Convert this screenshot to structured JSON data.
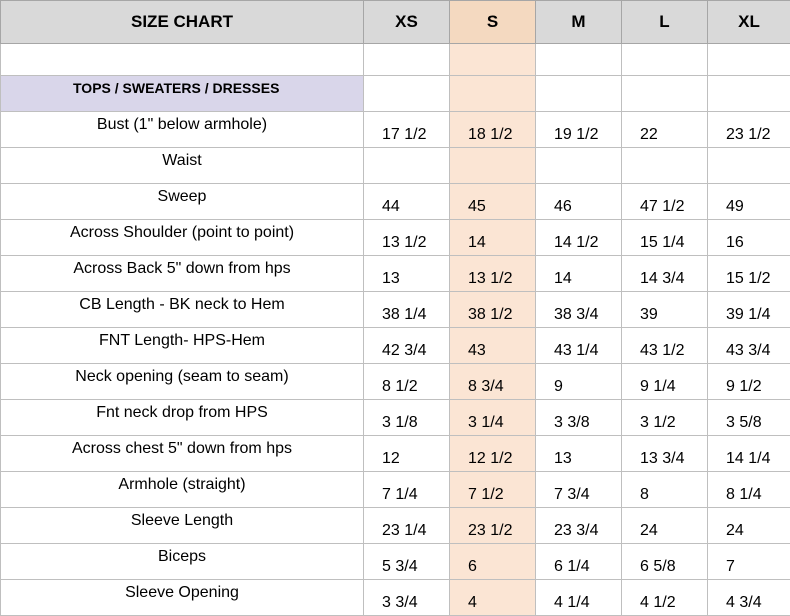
{
  "header": {
    "title": "SIZE CHART",
    "sizes": [
      "XS",
      "S",
      "M",
      "L",
      "XL"
    ]
  },
  "highlight_color": "#fbe5d4",
  "section": {
    "title": "TOPS / SWEATERS / DRESSES"
  },
  "rows": [
    {
      "label": "Bust (1\" below armhole)",
      "values": [
        "17 1/2",
        "18 1/2",
        "19 1/2",
        "22",
        "23 1/2"
      ]
    },
    {
      "label": "Waist",
      "values": [
        "",
        "",
        "",
        "",
        ""
      ]
    },
    {
      "label": "Sweep",
      "values": [
        "44",
        "45",
        "46",
        "47 1/2",
        "49"
      ]
    },
    {
      "label": "Across Shoulder (point to point)",
      "values": [
        "13 1/2",
        "14",
        "14 1/2",
        "15 1/4",
        "16"
      ]
    },
    {
      "label": "Across Back 5\" down from hps",
      "values": [
        "13",
        "13 1/2",
        "14",
        "14 3/4",
        "15 1/2"
      ]
    },
    {
      "label": "CB Length - BK neck to Hem",
      "values": [
        "38 1/4",
        "38 1/2",
        "38 3/4",
        "39",
        "39 1/4"
      ]
    },
    {
      "label": "FNT Length- HPS-Hem",
      "values": [
        "42 3/4",
        "43",
        "43 1/4",
        "43 1/2",
        "43 3/4"
      ]
    },
    {
      "label": "Neck opening (seam to seam)",
      "values": [
        "8 1/2",
        "8 3/4",
        "9",
        "9 1/4",
        "9 1/2"
      ]
    },
    {
      "label": "Fnt neck drop from HPS",
      "values": [
        "3 1/8",
        "3 1/4",
        "3 3/8",
        "3 1/2",
        "3 5/8"
      ]
    },
    {
      "label": "Across chest 5\" down from hps",
      "values": [
        "12",
        "12 1/2",
        "13",
        "13 3/4",
        "14 1/4"
      ]
    },
    {
      "label": "Armhole (straight)",
      "values": [
        "7 1/4",
        "7 1/2",
        "7 3/4",
        "8",
        "8 1/4"
      ]
    },
    {
      "label": "Sleeve Length",
      "values": [
        "23 1/4",
        "23 1/2",
        "23 3/4",
        "24",
        "24"
      ]
    },
    {
      "label": "Biceps",
      "values": [
        "5 3/4",
        "6",
        "6 1/4",
        "6 5/8",
        "7"
      ]
    },
    {
      "label": "Sleeve Opening",
      "values": [
        "3 3/4",
        "4",
        "4 1/4",
        "4 1/2",
        "4 3/4"
      ]
    }
  ]
}
